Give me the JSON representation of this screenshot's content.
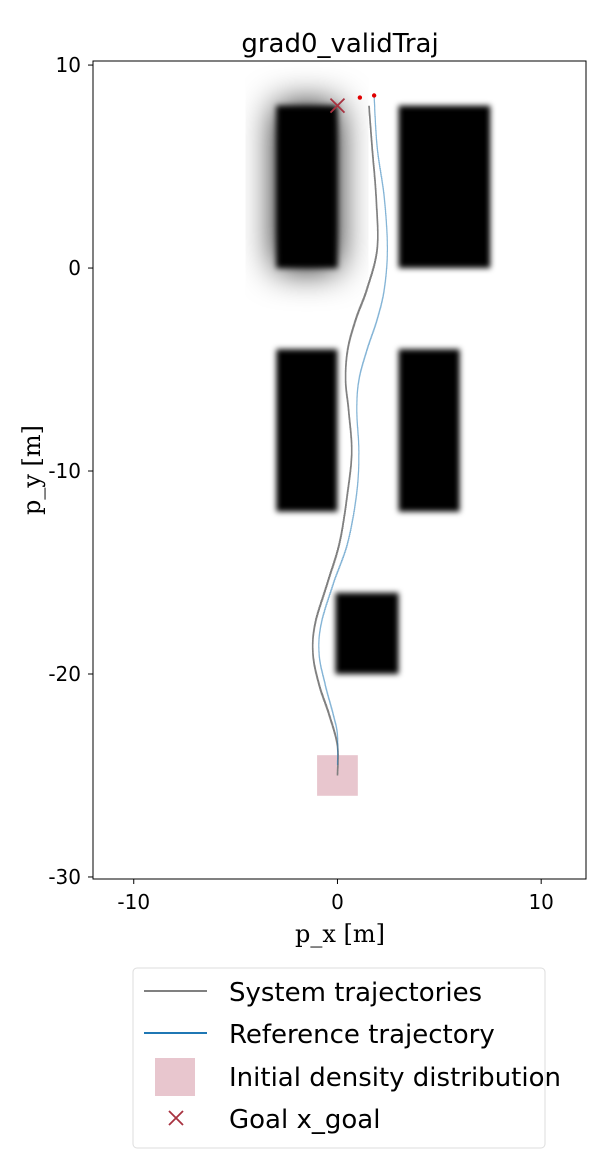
{
  "chart_data": {
    "type": "line",
    "title": "grad0_validTraj",
    "xlabel": "p_x [m]",
    "ylabel": "p_y [m]",
    "xlim": [
      -12,
      12.2
    ],
    "ylim": [
      -30.1,
      10.2
    ],
    "xticks": [
      -10,
      0,
      10
    ],
    "yticks": [
      10,
      0,
      -10,
      -20,
      -30
    ],
    "xtick_labels": [
      "-10",
      "0",
      "10"
    ],
    "ytick_labels": [
      "10",
      "0",
      "-10",
      "-20",
      "-30"
    ],
    "grid": false,
    "legend_position": "bottom",
    "obstacles": [
      {
        "x0": -3,
        "x1": 0,
        "y0": 0,
        "y1": 8,
        "blur": "heavy"
      },
      {
        "x0": 3,
        "x1": 7.5,
        "y0": 0,
        "y1": 8,
        "blur": "light"
      },
      {
        "x0": -3,
        "x1": 0,
        "y0": -12,
        "y1": -4,
        "blur": "light"
      },
      {
        "x0": 3,
        "x1": 6,
        "y0": -12,
        "y1": -4,
        "blur": "light"
      },
      {
        "x0": -0.1,
        "x1": 3,
        "y0": -20,
        "y1": -16,
        "blur": "light"
      }
    ],
    "series": [
      {
        "name": "System trajectories",
        "color": "#808080",
        "x": [
          0,
          0,
          -0.4,
          -0.9,
          -1.2,
          -1.1,
          -0.5,
          0.1,
          0.5,
          0.7,
          0.55,
          0.4,
          0.5,
          0.9,
          1.45,
          1.95,
          1.9,
          1.7,
          1.55
        ],
        "y": [
          -25,
          -23.5,
          -22,
          -20.5,
          -19,
          -17.5,
          -15.5,
          -13.5,
          -11,
          -9,
          -7,
          -5.5,
          -4,
          -2.5,
          -1,
          1,
          3.5,
          6,
          8
        ]
      },
      {
        "name": "Reference trajectory",
        "color": "#1f77b4",
        "x": [
          0,
          0,
          -0.2,
          -0.6,
          -0.9,
          -0.8,
          -0.2,
          0.5,
          0.95,
          1.05,
          0.95,
          1.05,
          1.45,
          1.95,
          2.3,
          2.45,
          2.3,
          1.95,
          1.8
        ],
        "y": [
          -24.5,
          -23,
          -22,
          -20.5,
          -19,
          -17.5,
          -15.5,
          -13.5,
          -11,
          -9,
          -7,
          -5.5,
          -4,
          -2.5,
          -1,
          1,
          3.5,
          6,
          8.5
        ]
      }
    ],
    "red_points": [
      [
        1.1,
        8.4
      ],
      [
        1.8,
        8.5
      ]
    ],
    "goal": {
      "x": 0,
      "y": 8,
      "color": "#a83240"
    },
    "initial_density": {
      "x0": -1,
      "x1": 1,
      "y0": -26,
      "y1": -24,
      "color": "#e8c6ce"
    },
    "legend": [
      {
        "label": "System trajectories",
        "kind": "line",
        "color": "#808080"
      },
      {
        "label": "Reference trajectory",
        "kind": "line",
        "color": "#1f77b4"
      },
      {
        "label": "Initial density distribution",
        "kind": "patch",
        "color": "#e8c6ce"
      },
      {
        "label": "Goal x_goal",
        "kind": "marker",
        "color": "#a83240"
      }
    ]
  }
}
